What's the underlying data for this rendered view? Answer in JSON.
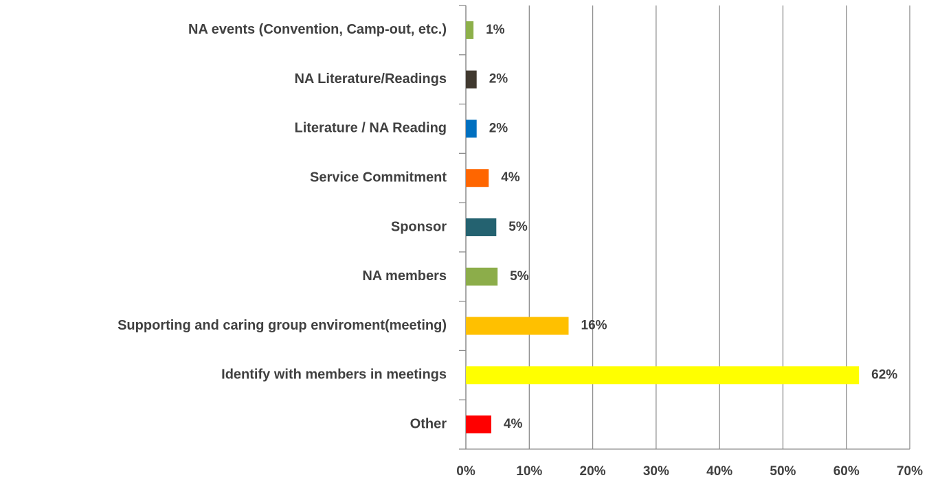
{
  "chart_data": {
    "type": "barh",
    "categories": [
      "NA events (Convention, Camp-out, etc.)",
      "NA Literature/Readings",
      "Literature / NA Reading",
      "Service Commitment",
      "Sponsor",
      "NA members",
      "Supporting and caring  group enviroment(meeting)",
      "Identify with members in meetings",
      "Other"
    ],
    "values": [
      1.2,
      1.7,
      1.7,
      3.6,
      4.8,
      5.0,
      16.2,
      62.0,
      4.0
    ],
    "value_labels": [
      "1%",
      "2%",
      "2%",
      "4%",
      "5%",
      "5%",
      "16%",
      "62%",
      "4%"
    ],
    "colors": [
      "#8db04a",
      "#40392f",
      "#0070c0",
      "#ff6600",
      "#246270",
      "#8cad4a",
      "#ffc000",
      "#ffff00",
      "#ff0000"
    ],
    "xlim": [
      0,
      70
    ],
    "xticks": [
      {
        "value": 0,
        "label": "0%"
      },
      {
        "value": 10,
        "label": "10%"
      },
      {
        "value": 20,
        "label": "20%"
      },
      {
        "value": 30,
        "label": "30%"
      },
      {
        "value": 40,
        "label": "40%"
      },
      {
        "value": 50,
        "label": "50%"
      },
      {
        "value": 60,
        "label": "60%"
      },
      {
        "value": 70,
        "label": "70%"
      }
    ],
    "grid": true
  }
}
